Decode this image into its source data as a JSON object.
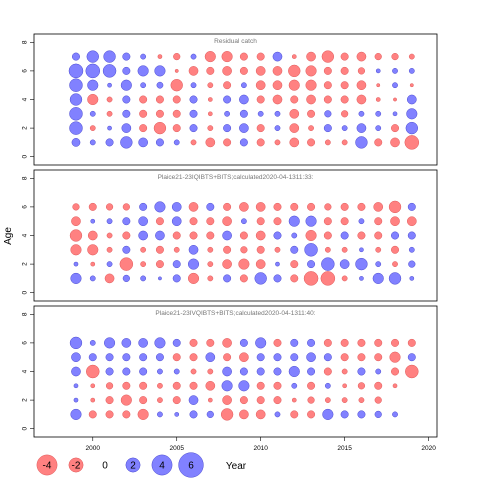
{
  "chart_data": {
    "type": "scatter",
    "subtype": "bubble-residuals",
    "ylabel": "Age",
    "xlabel": "Year",
    "x_ticks": [
      2000,
      2005,
      2010,
      2015,
      2020
    ],
    "y_ticks": [
      0,
      2,
      4,
      6,
      8
    ],
    "xlim": [
      1996.5,
      2020.5
    ],
    "ylim": [
      -0.3,
      8.3
    ],
    "positive_color": "#6b6bff",
    "negative_color": "#ff6b6b",
    "years": [
      1999,
      2000,
      2001,
      2002,
      2003,
      2004,
      2005,
      2006,
      2007,
      2008,
      2009,
      2010,
      2011,
      2012,
      2013,
      2014,
      2015,
      2016,
      2017,
      2018,
      2019
    ],
    "legend": {
      "values": [
        -4,
        -2,
        0,
        2,
        4,
        6
      ],
      "labels": [
        "-4",
        "-2",
        "0",
        "2",
        "4",
        "6"
      ]
    },
    "panels": [
      {
        "title": "Residual catch",
        "ages": [
          1,
          2,
          3,
          4,
          5,
          6,
          7
        ],
        "residuals": [
          [
            1.2,
            0.5,
            1.0,
            2.5,
            1.5,
            1.0,
            0.5,
            -0.5,
            -1.5,
            -1.0,
            1.0,
            -1.0,
            -0.5,
            -1.5,
            -1.0,
            -0.5,
            -0.5,
            2.5,
            -1.0,
            -1.5,
            -3.5
          ],
          [
            3.0,
            -0.5,
            0.3,
            1.5,
            -1.0,
            -2.5,
            -1.0,
            1.0,
            -0.5,
            1.0,
            1.5,
            -1.0,
            0.5,
            -1.5,
            -0.5,
            1.0,
            0.5,
            1.5,
            0.5,
            -1.0,
            2.5
          ],
          [
            3.0,
            0.5,
            -0.5,
            1.0,
            -1.0,
            -1.0,
            -1.0,
            1.0,
            -0.3,
            0.5,
            1.0,
            0.5,
            0.5,
            -1.5,
            -1.0,
            0.8,
            -0.8,
            0.5,
            0.5,
            0.3,
            2.0
          ],
          [
            2.5,
            -2.0,
            -0.5,
            1.0,
            -1.0,
            -1.0,
            -1.0,
            1.0,
            -0.3,
            1.0,
            1.5,
            -1.0,
            -1.5,
            -1.0,
            -1.5,
            -1.0,
            -1.0,
            -1.5,
            -0.3,
            -0.2,
            1.5
          ],
          [
            3.0,
            2.0,
            0.3,
            2.0,
            0.5,
            0.7,
            -2.5,
            0.5,
            -0.5,
            -1.0,
            0.5,
            -1.5,
            -1.5,
            -2.0,
            -2.0,
            -1.0,
            -1.0,
            -1.5,
            -0.2,
            0.5,
            -0.2
          ],
          [
            3.5,
            3.5,
            3.0,
            1.0,
            2.0,
            2.0,
            -0.2,
            -1.5,
            -1.0,
            -1.5,
            -1.0,
            -1.5,
            -1.5,
            -2.5,
            -2.0,
            -1.0,
            -1.0,
            -0.8,
            0.3,
            0.5,
            0.5
          ],
          [
            1.0,
            2.5,
            2.5,
            1.0,
            0.5,
            -0.3,
            -0.8,
            0.5,
            -2.0,
            -2.0,
            -1.0,
            -1.0,
            1.5,
            -0.3,
            -1.5,
            -2.5,
            -1.0,
            -1.5,
            -0.8,
            -0.8,
            -0.5
          ]
        ]
      },
      {
        "title": "Plaice21-23IQIBTS+BITS;calculated2020-04-1311:33:",
        "ages": [
          1,
          2,
          3,
          4,
          5,
          6
        ],
        "residuals": [
          [
            2.0,
            0.5,
            -1.5,
            0.8,
            0.5,
            0.2,
            1.0,
            -2.0,
            -0.5,
            1.0,
            -1.0,
            2.5,
            1.0,
            -1.0,
            -3.5,
            -3.5,
            -0.5,
            0.3,
            2.0,
            2.5,
            0.3
          ],
          [
            0.3,
            -0.3,
            0.5,
            -3.0,
            -0.5,
            -1.0,
            1.0,
            2.0,
            -0.5,
            -1.5,
            -2.0,
            -1.5,
            0.3,
            -1.0,
            1.0,
            3.0,
            1.5,
            2.5,
            0.5,
            -0.5,
            0.8
          ],
          [
            -2.0,
            -2.0,
            -0.5,
            1.0,
            -0.5,
            -1.0,
            -0.5,
            1.5,
            -0.5,
            -1.0,
            -0.8,
            -1.0,
            -0.5,
            1.0,
            3.0,
            -0.5,
            -0.5,
            0.3,
            -0.5,
            -1.0,
            0.5
          ],
          [
            -2.5,
            -1.5,
            -0.5,
            -1.0,
            1.5,
            1.5,
            -1.0,
            -1.0,
            -1.0,
            1.5,
            -1.0,
            -1.5,
            1.0,
            0.5,
            -2.0,
            -1.0,
            1.0,
            -1.0,
            -1.0,
            1.0,
            1.0
          ],
          [
            -1.5,
            0.3,
            0.5,
            1.0,
            1.5,
            -1.0,
            1.5,
            -1.0,
            -1.0,
            -1.5,
            0.5,
            -1.0,
            -1.0,
            2.0,
            2.0,
            -1.0,
            -1.0,
            0.5,
            -1.0,
            -1.5,
            -1.5
          ],
          [
            -0.8,
            -1.0,
            -0.8,
            -0.8,
            1.0,
            2.0,
            1.5,
            -1.5,
            1.0,
            -1.0,
            -1.5,
            -1.5,
            -1.0,
            -1.0,
            -1.0,
            -0.8,
            -1.0,
            -1.0,
            -1.5,
            -2.5,
            1.0
          ]
        ]
      },
      {
        "title": "Plaice21-23IVQIBTS+BITS;calculated2020-04-1311:40:",
        "ages": [
          1,
          2,
          3,
          4,
          5,
          6
        ],
        "residuals": [
          [
            2.0,
            -1.0,
            -1.0,
            -1.0,
            -2.0,
            0.5,
            0.3,
            1.0,
            0.8,
            -2.5,
            -1.5,
            -1.5,
            0.5,
            -1.0,
            -1.0,
            2.0,
            1.0,
            1.0,
            0.8,
            0.5,
            0
          ],
          [
            0.3,
            -0.3,
            -1.0,
            -2.0,
            -1.0,
            -0.5,
            -1.0,
            1.5,
            -0.3,
            -1.5,
            -1.0,
            -1.0,
            -1.0,
            -0.3,
            -0.8,
            -0.5,
            -0.5,
            -0.5,
            -0.8,
            0,
            0
          ],
          [
            0.3,
            -0.3,
            -0.8,
            -1.0,
            -1.0,
            -0.5,
            -1.0,
            -1.0,
            -1.5,
            2.0,
            2.0,
            -1.0,
            -1.0,
            0.5,
            -1.0,
            0.5,
            -0.3,
            -0.8,
            -1.0,
            -0.3,
            0
          ],
          [
            1.5,
            -3.0,
            1.0,
            1.0,
            1.0,
            0.5,
            0.5,
            -0.5,
            -0.5,
            1.5,
            1.0,
            1.0,
            1.0,
            2.0,
            1.0,
            -1.0,
            -0.5,
            1.0,
            0.5,
            -1.0,
            -3.0
          ],
          [
            1.5,
            1.0,
            1.0,
            1.0,
            1.0,
            1.0,
            -1.0,
            -1.0,
            1.5,
            -1.0,
            -1.5,
            1.0,
            1.0,
            1.0,
            1.5,
            1.0,
            -1.0,
            -1.0,
            -1.0,
            -2.0,
            1.0
          ],
          [
            2.5,
            0.5,
            2.0,
            1.5,
            1.5,
            2.0,
            1.0,
            -1.0,
            -1.0,
            -1.5,
            1.0,
            2.0,
            -1.0,
            1.0,
            1.0,
            -1.0,
            -1.0,
            -1.0,
            -1.0,
            -1.0,
            -1.0
          ]
        ]
      }
    ]
  }
}
